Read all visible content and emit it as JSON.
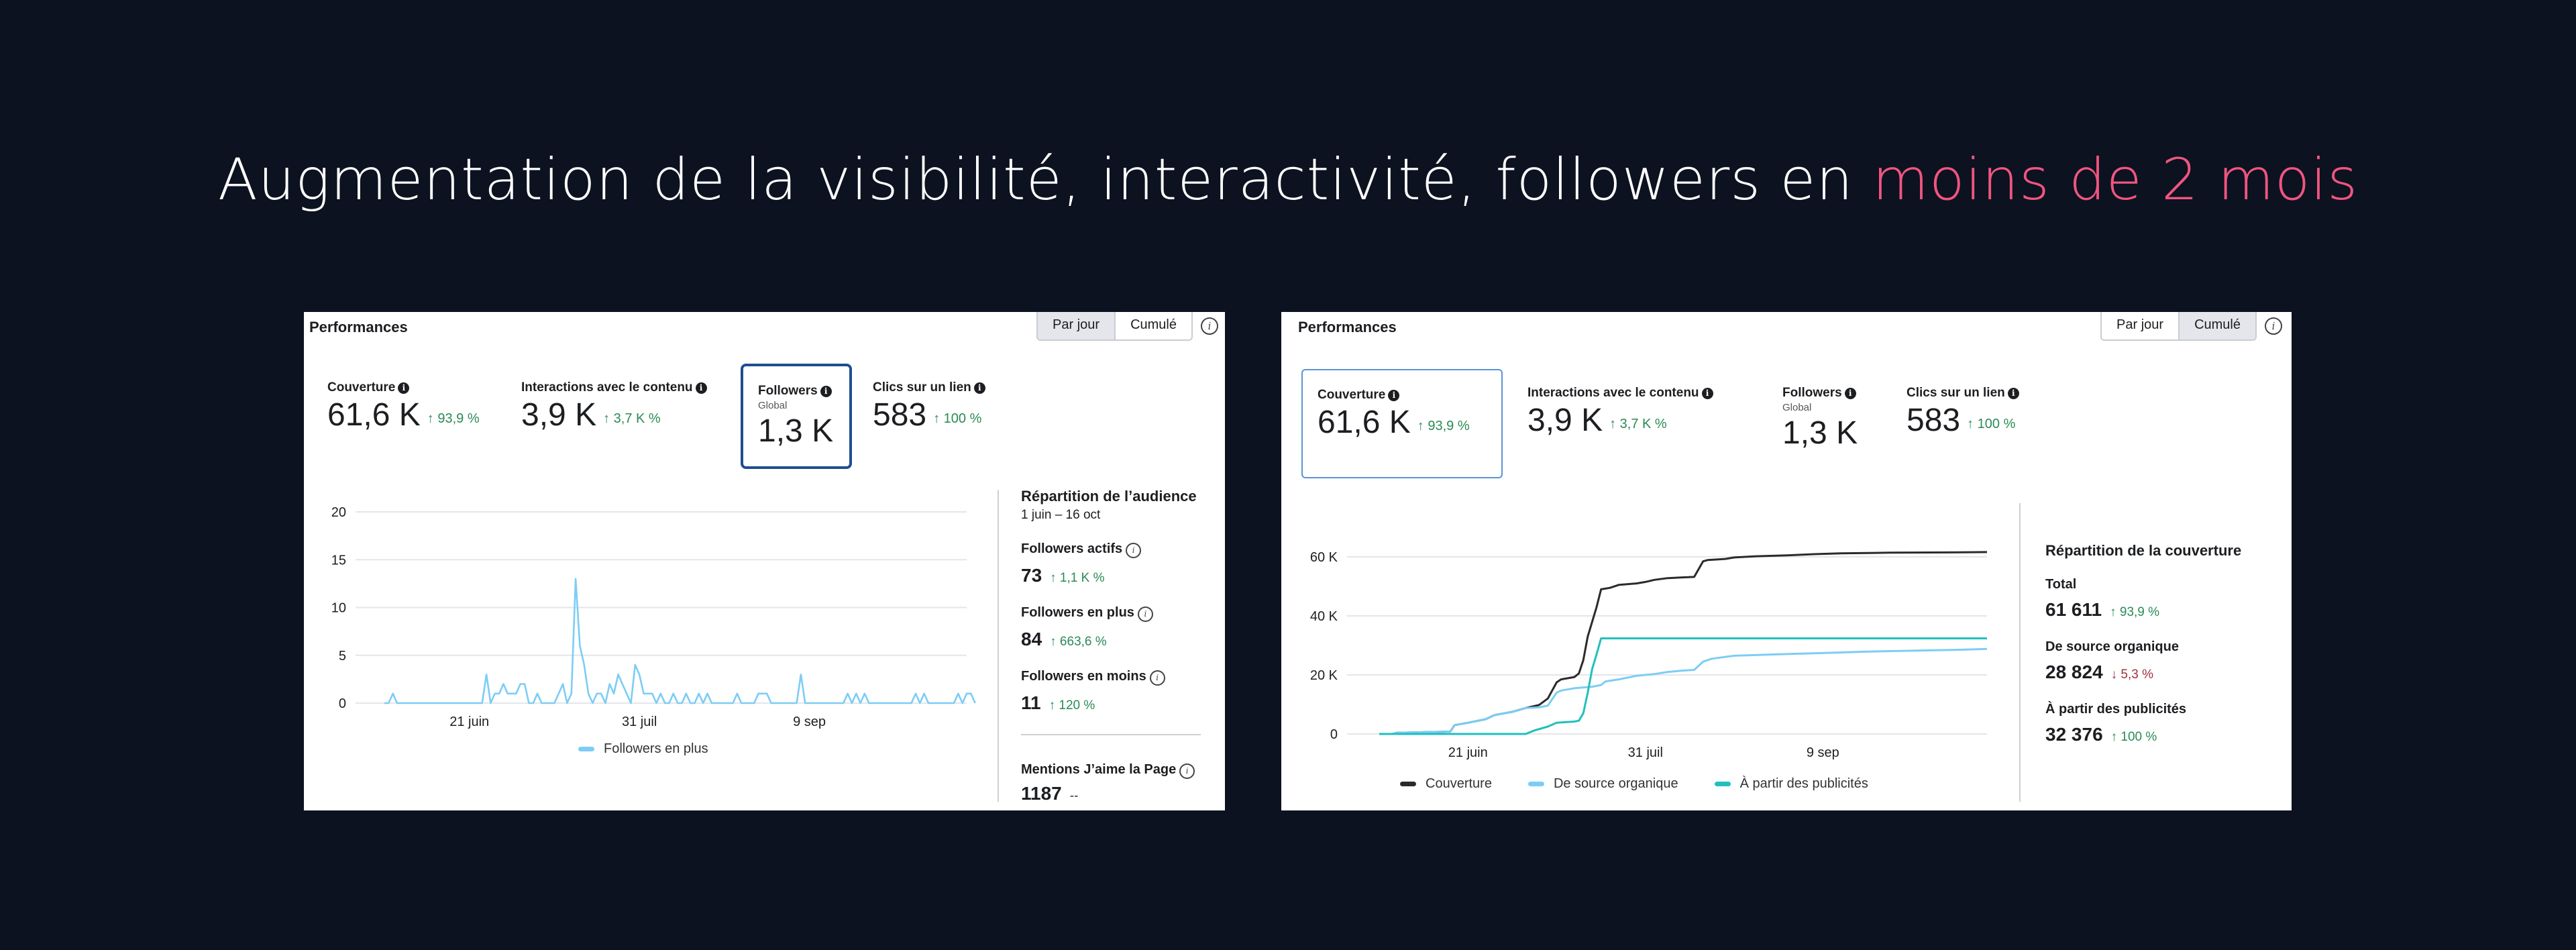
{
  "headline": {
    "text": "Augmentation de la visibilité, interactivité, followers en",
    "accent": "moins de 2 mois",
    "accent_color": "#f0557f"
  },
  "left_card": {
    "title": "Performances",
    "toggle": [
      {
        "label": "Par jour",
        "active": true
      },
      {
        "label": "Cumulé",
        "active": false
      }
    ],
    "kpis": [
      {
        "label": "Couverture",
        "value": "61,6 K",
        "delta": "↑ 93,9 %"
      },
      {
        "label": "Interactions avec le contenu",
        "value": "3,9 K",
        "delta": "↑ 3,7 K %"
      },
      {
        "label": "Followers",
        "sub": "Global",
        "value": "1,3 K",
        "selected": true
      },
      {
        "label": "Clics sur un lien",
        "value": "583",
        "delta": "↑ 100 %"
      }
    ],
    "side": {
      "title": "Répartition de l’audience",
      "date_range": "1 juin – 16 oct",
      "metrics": [
        {
          "label": "Followers actifs",
          "value": "73",
          "delta": "↑ 1,1 K %"
        },
        {
          "label": "Followers en plus",
          "value": "84",
          "delta": "↑ 663,6 %"
        },
        {
          "label": "Followers en moins",
          "value": "11",
          "delta": "↑ 120 %"
        }
      ],
      "likes": {
        "label": "Mentions J’aime la Page",
        "value": "1187",
        "delta": "--"
      }
    },
    "legend": [
      {
        "label": "Followers en plus",
        "color": "#7ccdf5"
      }
    ]
  },
  "right_card": {
    "title": "Performances",
    "toggle": [
      {
        "label": "Par jour",
        "active": false
      },
      {
        "label": "Cumulé",
        "active": true
      }
    ],
    "kpis": [
      {
        "label": "Couverture",
        "value": "61,6 K",
        "delta": "↑ 93,9 %",
        "selected": true
      },
      {
        "label": "Interactions avec le contenu",
        "value": "3,9 K",
        "delta": "↑ 3,7 K %"
      },
      {
        "label": "Followers",
        "sub": "Global",
        "value": "1,3 K"
      },
      {
        "label": "Clics sur un lien",
        "value": "583",
        "delta": "↑ 100 %"
      }
    ],
    "side": {
      "title": "Répartition de la couverture",
      "metrics": [
        {
          "label": "Total",
          "value": "61 611",
          "delta": "↑ 93,9 %",
          "direction": "up"
        },
        {
          "label": "De source organique",
          "value": "28 824",
          "delta": "↓ 5,3 %",
          "direction": "down"
        },
        {
          "label": "À partir des publicités",
          "value": "32 376",
          "delta": "↑ 100 %",
          "direction": "up"
        }
      ]
    },
    "legend": [
      {
        "label": "Couverture",
        "color": "#2b2b2b"
      },
      {
        "label": "De source organique",
        "color": "#7ccdf5"
      },
      {
        "label": "À partir des publicités",
        "color": "#22bfbf"
      }
    ]
  },
  "colors": {
    "positive": "#2a8a55",
    "negative": "#a0303a",
    "selected_border": "#1d4f91"
  },
  "chart_data": [
    {
      "type": "line",
      "title": "",
      "xlabel": "",
      "ylabel": "",
      "x_start": "1 juin",
      "x_end": "16 oct",
      "x_ticks": [
        {
          "label": "21 juin",
          "day": 20
        },
        {
          "label": "31 juil",
          "day": 60
        },
        {
          "label": "9 sep",
          "day": 100
        }
      ],
      "y_ticks": [
        0,
        5,
        10,
        15,
        20
      ],
      "ylim": [
        0,
        20
      ],
      "xlim_days": [
        0,
        137
      ],
      "grid": true,
      "legend_position": "bottom",
      "series": [
        {
          "name": "Followers en plus",
          "color": "#7ccdf5",
          "values": [
            0,
            0,
            1,
            0,
            0,
            0,
            0,
            0,
            0,
            0,
            0,
            0,
            0,
            0,
            0,
            0,
            0,
            0,
            0,
            0,
            0,
            0,
            0,
            0,
            3,
            0,
            1,
            1,
            2,
            1,
            1,
            1,
            2,
            2,
            0,
            0,
            1,
            0,
            0,
            0,
            0,
            1,
            2,
            0,
            1,
            13,
            6,
            4,
            1,
            0,
            1,
            1,
            0,
            2,
            1,
            3,
            2,
            1,
            0,
            4,
            3,
            1,
            1,
            1,
            0,
            1,
            0,
            0,
            1,
            0,
            0,
            1,
            0,
            0,
            1,
            0,
            1,
            0,
            0,
            0,
            0,
            0,
            0,
            1,
            0,
            0,
            0,
            0,
            1,
            1,
            1,
            0,
            0,
            0,
            0,
            0,
            0,
            0,
            3,
            0,
            0,
            0,
            0,
            0,
            0,
            0,
            0,
            0,
            0,
            1,
            0,
            1,
            0,
            1,
            0,
            0,
            0,
            0,
            0,
            0,
            0,
            0,
            0,
            0,
            0,
            1,
            0,
            1,
            0,
            0,
            0,
            0,
            0,
            0,
            0,
            1,
            0,
            1,
            1,
            0
          ]
        }
      ]
    },
    {
      "type": "line",
      "title": "",
      "xlabel": "",
      "ylabel": "",
      "x_start": "1 juin",
      "x_end": "16 oct",
      "x_ticks": [
        {
          "label": "21 juin",
          "day": 20
        },
        {
          "label": "31 juil",
          "day": 60
        },
        {
          "label": "9 sep",
          "day": 100
        }
      ],
      "y_ticks": [
        {
          "value": 0,
          "label": "0"
        },
        {
          "value": 20000,
          "label": "20 K"
        },
        {
          "value": 40000,
          "label": "40 K"
        },
        {
          "value": 60000,
          "label": "60 K"
        }
      ],
      "ylim": [
        0,
        60000
      ],
      "xlim_days": [
        0,
        137
      ],
      "grid": true,
      "legend_position": "bottom",
      "series": [
        {
          "name": "Couverture",
          "color": "#2b2b2b",
          "points": [
            [
              0,
              0
            ],
            [
              3,
              0
            ],
            [
              4,
              400
            ],
            [
              10,
              600
            ],
            [
              16,
              800
            ],
            [
              17,
              3000
            ],
            [
              20,
              3800
            ],
            [
              24,
              5000
            ],
            [
              26,
              6400
            ],
            [
              30,
              7500
            ],
            [
              33,
              8800
            ],
            [
              36,
              9800
            ],
            [
              38,
              12000
            ],
            [
              40,
              17500
            ],
            [
              41,
              18500
            ],
            [
              44,
              19300
            ],
            [
              45,
              20500
            ],
            [
              46,
              25000
            ],
            [
              47,
              33000
            ],
            [
              48,
              38000
            ],
            [
              49,
              43000
            ],
            [
              50,
              49000
            ],
            [
              52,
              49500
            ],
            [
              54,
              50500
            ],
            [
              58,
              51000
            ],
            [
              60,
              51500
            ],
            [
              62,
              52200
            ],
            [
              65,
              52800
            ],
            [
              68,
              53000
            ],
            [
              71,
              53200
            ],
            [
              73,
              58500
            ],
            [
              74,
              58900
            ],
            [
              78,
              59300
            ],
            [
              80,
              59800
            ],
            [
              85,
              60200
            ],
            [
              92,
              60500
            ],
            [
              98,
              60900
            ],
            [
              104,
              61200
            ],
            [
              115,
              61400
            ],
            [
              128,
              61500
            ],
            [
              137,
              61611
            ]
          ]
        },
        {
          "name": "De source organique",
          "color": "#7ccdf5",
          "points": [
            [
              0,
              0
            ],
            [
              3,
              0
            ],
            [
              4,
              400
            ],
            [
              10,
              600
            ],
            [
              16,
              800
            ],
            [
              17,
              3000
            ],
            [
              20,
              3800
            ],
            [
              24,
              5000
            ],
            [
              26,
              6400
            ],
            [
              30,
              7500
            ],
            [
              33,
              8800
            ],
            [
              36,
              9000
            ],
            [
              38,
              9600
            ],
            [
              40,
              14000
            ],
            [
              41,
              14700
            ],
            [
              44,
              15500
            ],
            [
              48,
              16000
            ],
            [
              50,
              16600
            ],
            [
              51,
              17800
            ],
            [
              54,
              18500
            ],
            [
              58,
              19700
            ],
            [
              62,
              20300
            ],
            [
              65,
              21000
            ],
            [
              68,
              21400
            ],
            [
              71,
              21700
            ],
            [
              73,
              24500
            ],
            [
              75,
              25500
            ],
            [
              80,
              26500
            ],
            [
              90,
              27000
            ],
            [
              100,
              27400
            ],
            [
              110,
              27900
            ],
            [
              120,
              28200
            ],
            [
              130,
              28500
            ],
            [
              137,
              28824
            ]
          ]
        },
        {
          "name": "À partir des publicités",
          "color": "#22bfbf",
          "points": [
            [
              0,
              0
            ],
            [
              33,
              0
            ],
            [
              35,
              1200
            ],
            [
              38,
              2500
            ],
            [
              40,
              3800
            ],
            [
              44,
              4200
            ],
            [
              45,
              4500
            ],
            [
              46,
              7000
            ],
            [
              47,
              14000
            ],
            [
              48,
              22000
            ],
            [
              49,
              27000
            ],
            [
              50,
              32376
            ],
            [
              137,
              32376
            ]
          ]
        }
      ]
    }
  ]
}
